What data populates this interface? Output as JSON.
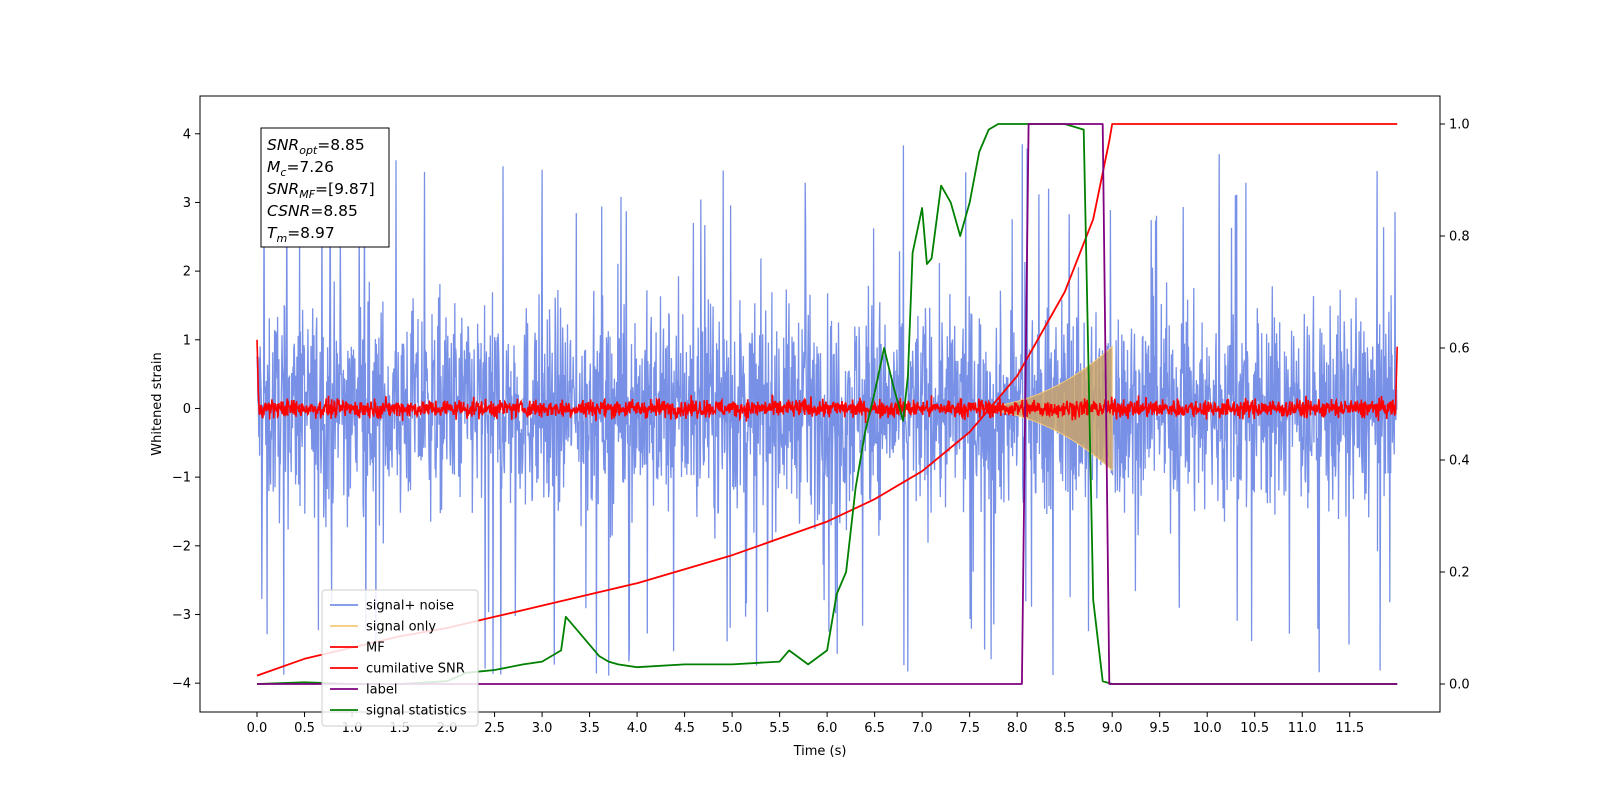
{
  "chart_data": {
    "type": "line",
    "title": "",
    "xlabel": "Time (s)",
    "ylabel": "Whitened strain",
    "xlim": [
      -0.6,
      12.45
    ],
    "ylim": [
      -4.42,
      4.55
    ],
    "y2lim": [
      -0.05,
      1.05
    ],
    "x_ticks": [
      0.0,
      0.5,
      1.0,
      1.5,
      2.0,
      2.5,
      3.0,
      3.5,
      4.0,
      4.5,
      5.0,
      5.5,
      6.0,
      6.5,
      7.0,
      7.5,
      8.0,
      8.5,
      9.0,
      9.5,
      10.0,
      10.5,
      11.0,
      11.5
    ],
    "x_tick_labels": [
      "0.0",
      "0.5",
      "1.0",
      "1.5",
      "2.0",
      "2.5",
      "3.0",
      "3.5",
      "4.0",
      "4.5",
      "5.0",
      "5.5",
      "6.0",
      "6.5",
      "7.0",
      "7.5",
      "8.0",
      "8.5",
      "9.0",
      "9.5",
      "10.0",
      "10.5",
      "11.0",
      "11.5"
    ],
    "y_ticks": [
      4,
      3,
      2,
      1,
      0,
      -1,
      -2,
      -3,
      -4
    ],
    "y_tick_labels": [
      "4",
      "3",
      "2",
      "1",
      "0",
      "−1",
      "−2",
      "−3",
      "−4"
    ],
    "y2_ticks": [
      1.0,
      0.8,
      0.6,
      0.4,
      0.2,
      0.0
    ],
    "y2_tick_labels": [
      "1.0",
      "0.8",
      "0.6",
      "0.4",
      "0.2",
      "0.0"
    ],
    "legend_placement": "lower-left",
    "grid": false,
    "series": [
      {
        "name": "signal+ noise",
        "color": "#7891e6",
        "axis": "left",
        "style": "noise",
        "x_range": [
          0.0,
          12.0
        ],
        "amplitude_typical": 1.2,
        "amplitude_peak": 4.2
      },
      {
        "name": "signal only",
        "color": "#f5c87a",
        "axis": "left",
        "style": "chirp",
        "x_range": [
          7.4,
          9.0
        ],
        "envelope_max": 0.9
      },
      {
        "name": "MF",
        "color": "#ff0000",
        "axis": "left",
        "style": "noise",
        "x_range": [
          0.0,
          12.0
        ],
        "amplitude_typical": 0.12
      },
      {
        "name": "cumilative SNR",
        "color": "#ff0000",
        "axis": "right",
        "x": [
          0.0,
          0.5,
          1.0,
          1.5,
          2.0,
          2.5,
          3.0,
          3.5,
          4.0,
          4.5,
          5.0,
          5.5,
          6.0,
          6.5,
          7.0,
          7.5,
          8.0,
          8.5,
          8.8,
          8.97,
          9.0,
          12.0
        ],
        "y": [
          0.015,
          0.045,
          0.065,
          0.085,
          0.1,
          0.12,
          0.14,
          0.16,
          0.18,
          0.205,
          0.23,
          0.26,
          0.29,
          0.33,
          0.38,
          0.45,
          0.55,
          0.7,
          0.83,
          0.97,
          1.0,
          1.0
        ]
      },
      {
        "name": "label",
        "color": "#800080",
        "axis": "right",
        "x": [
          0.0,
          8.05,
          8.12,
          8.9,
          8.97,
          12.0
        ],
        "y": [
          0.0,
          0.0,
          1.0,
          1.0,
          0.0,
          0.0
        ]
      },
      {
        "name": "signal statistics",
        "color": "#008000",
        "axis": "right",
        "x": [
          0.0,
          0.5,
          1.0,
          1.5,
          2.0,
          2.2,
          2.5,
          2.8,
          3.0,
          3.1,
          3.2,
          3.25,
          3.4,
          3.5,
          3.6,
          3.7,
          3.8,
          4.0,
          4.5,
          5.0,
          5.5,
          5.6,
          5.8,
          6.0,
          6.1,
          6.2,
          6.3,
          6.4,
          6.5,
          6.6,
          6.7,
          6.8,
          6.85,
          6.9,
          7.0,
          7.05,
          7.1,
          7.2,
          7.3,
          7.4,
          7.5,
          7.6,
          7.7,
          7.8,
          8.0,
          8.2,
          8.5,
          8.7,
          8.8,
          8.9,
          9.0,
          12.0
        ],
        "y": [
          0.0,
          0.003,
          0.0,
          0.0,
          0.005,
          0.02,
          0.025,
          0.035,
          0.04,
          0.05,
          0.06,
          0.12,
          0.09,
          0.07,
          0.05,
          0.04,
          0.035,
          0.03,
          0.035,
          0.035,
          0.04,
          0.06,
          0.035,
          0.06,
          0.16,
          0.2,
          0.35,
          0.45,
          0.52,
          0.6,
          0.53,
          0.47,
          0.55,
          0.77,
          0.85,
          0.75,
          0.76,
          0.89,
          0.86,
          0.8,
          0.86,
          0.95,
          0.99,
          1.0,
          1.0,
          1.0,
          1.0,
          0.99,
          0.15,
          0.005,
          0.0,
          0.0
        ]
      }
    ],
    "annotation": {
      "lines": [
        {
          "sym": "SNR",
          "sub": "opt",
          "val": "=8.85"
        },
        {
          "sym": "M",
          "sub": "c",
          "val": "=7.26"
        },
        {
          "sym": "SNR",
          "sub": "MF",
          "val": "=[9.87]"
        },
        {
          "sym": "CSNR",
          "sub": "",
          "val": "=8.85"
        },
        {
          "sym": "T",
          "sub": "m",
          "val": "=8.97"
        }
      ]
    }
  }
}
